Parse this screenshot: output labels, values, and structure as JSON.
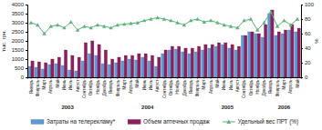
{
  "chart_data": {
    "type": "bar",
    "y_label": "тыс. грн.",
    "y2_label": "%",
    "categories": [
      "Январь",
      "Февраль",
      "Март",
      "Апрель",
      "Май",
      "Июнь",
      "Июль",
      "Август",
      "Сентябрь",
      "Октябрь",
      "Ноябрь",
      "Декабрь",
      "Январь",
      "Февраль",
      "Март",
      "Апрель",
      "Май",
      "Июнь",
      "Июль",
      "Август",
      "Сентябрь",
      "Октябрь",
      "Ноябрь",
      "Декабрь",
      "Январь",
      "Февраль",
      "Март",
      "Апрель",
      "Май",
      "Июнь",
      "Июль",
      "Август",
      "Сентябрь",
      "Октябрь",
      "Ноябрь",
      "Декабрь",
      "Январь",
      "Февраль",
      "Март",
      "Апрель",
      "Май"
    ],
    "years": [
      "2003",
      "2004",
      "2005",
      "2006"
    ],
    "ylim": [
      0,
      4000
    ],
    "yticks": [
      0,
      500,
      1000,
      1500,
      2000,
      2500,
      3000,
      3500,
      4000
    ],
    "y2lim": [
      0,
      100
    ],
    "y2ticks": [
      0,
      20,
      40,
      60,
      80,
      100
    ],
    "grid": false,
    "legend": "bottom",
    "series": [
      {
        "name": "Затраты на телерекламу*",
        "type": "bar",
        "color": "#5b9bd5",
        "values": [
          600,
          550,
          450,
          700,
          750,
          650,
          400,
          350,
          900,
          1300,
          1200,
          750,
          700,
          800,
          900,
          1000,
          950,
          1100,
          900,
          600,
          1300,
          1500,
          1550,
          1400,
          1300,
          1400,
          1500,
          1600,
          1700,
          1800,
          1600,
          1500,
          2300,
          2500,
          2400,
          2200,
          3500,
          2300,
          2400,
          2600,
          2500
        ]
      },
      {
        "name": "Объем аптечных продаж",
        "type": "bar",
        "color": "#8e1f5f",
        "values": [
          900,
          850,
          800,
          1000,
          1100,
          1500,
          1200,
          1100,
          1900,
          2000,
          1800,
          1500,
          1000,
          1100,
          1200,
          1200,
          1300,
          1300,
          1200,
          1100,
          1500,
          1700,
          1700,
          1600,
          1600,
          1700,
          1800,
          1800,
          1900,
          1900,
          1800,
          1700,
          2300,
          2500,
          2400,
          2900,
          3700,
          2500,
          2600,
          2900,
          2700
        ]
      },
      {
        "name": "Удельный вес ПРТ (%)",
        "type": "line",
        "axis": "y2",
        "color": "#5cb37b",
        "marker": "triangle",
        "values": [
          75,
          72,
          60,
          70,
          72,
          68,
          76,
          65,
          70,
          68,
          72,
          70,
          68,
          72,
          73,
          74,
          75,
          78,
          80,
          82,
          80,
          78,
          75,
          72,
          78,
          80,
          76,
          78,
          75,
          72,
          70,
          68,
          78,
          80,
          65,
          75,
          90,
          70,
          78,
          72,
          80
        ]
      }
    ]
  }
}
